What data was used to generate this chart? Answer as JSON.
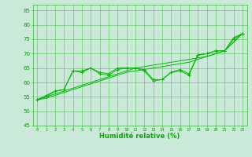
{
  "x": [
    0,
    1,
    2,
    3,
    4,
    5,
    6,
    7,
    8,
    9,
    10,
    11,
    12,
    13,
    14,
    15,
    16,
    17,
    18,
    19,
    20,
    21,
    22,
    23
  ],
  "line1": [
    54,
    55.5,
    57,
    57.5,
    64,
    64,
    65,
    63.5,
    63,
    65,
    65,
    65,
    64.5,
    61,
    61,
    63.5,
    64.5,
    63,
    69.5,
    70,
    71,
    71,
    75.5,
    77
  ],
  "line2": [
    54,
    55,
    57,
    57.5,
    64,
    63.5,
    65,
    63,
    62.5,
    64.5,
    65,
    65,
    64,
    60.5,
    61,
    63.5,
    64,
    62.5,
    69.5,
    70,
    71,
    71,
    75,
    77
  ],
  "trend1": [
    54,
    55,
    56,
    57,
    58,
    59,
    60,
    61,
    62,
    63,
    64,
    65,
    65.5,
    66,
    66.5,
    67,
    67.5,
    68,
    68.5,
    69,
    70,
    71,
    74,
    77
  ],
  "trend2": [
    54,
    54.5,
    55.5,
    56.5,
    57.5,
    58.5,
    59.5,
    60.5,
    61.5,
    62.5,
    63.5,
    64,
    64.5,
    65,
    65.5,
    66,
    66.5,
    67,
    68,
    69,
    70,
    71,
    74,
    77
  ],
  "ylim": [
    45,
    87
  ],
  "yticks": [
    45,
    50,
    55,
    60,
    65,
    70,
    75,
    80,
    85
  ],
  "xlim": [
    -0.5,
    23.5
  ],
  "xlabel": "Humidité relative (%)",
  "line_color": "#00BB00",
  "bg_color": "#CBE9D8",
  "grid_color": "#33BB33",
  "tick_color": "#00AA00",
  "label_color": "#00AA00"
}
